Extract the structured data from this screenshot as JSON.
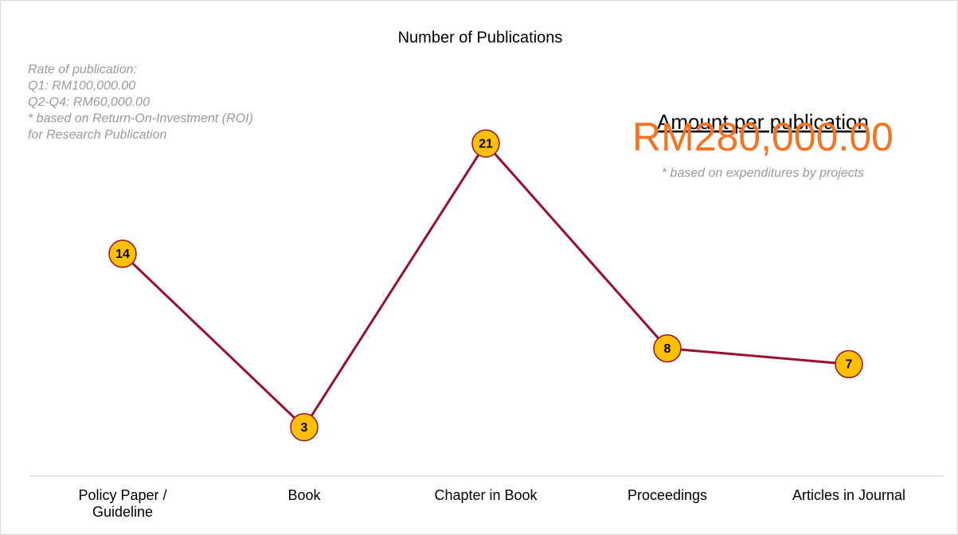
{
  "chart_data": {
    "type": "line",
    "title": "Number of Publications",
    "categories": [
      "Policy Paper / Guideline",
      "Book",
      "Chapter in Book",
      "Proceedings",
      "Articles in Journal"
    ],
    "values": [
      14,
      3,
      21,
      8,
      7
    ],
    "color": "#9b0f2e",
    "marker_color": "#ffc000",
    "ylim": [
      0,
      25
    ],
    "notes": [
      "Rate of publication:",
      "Q1: RM100,000.00",
      "Q2-Q4: RM60,000.00",
      "* based on Return-On-Investment (ROI)",
      "for Research Publication"
    ],
    "amount_title": "Amount per publication",
    "amount_value": "RM280,000.00",
    "amount_note": "* based on expenditures by projects"
  }
}
